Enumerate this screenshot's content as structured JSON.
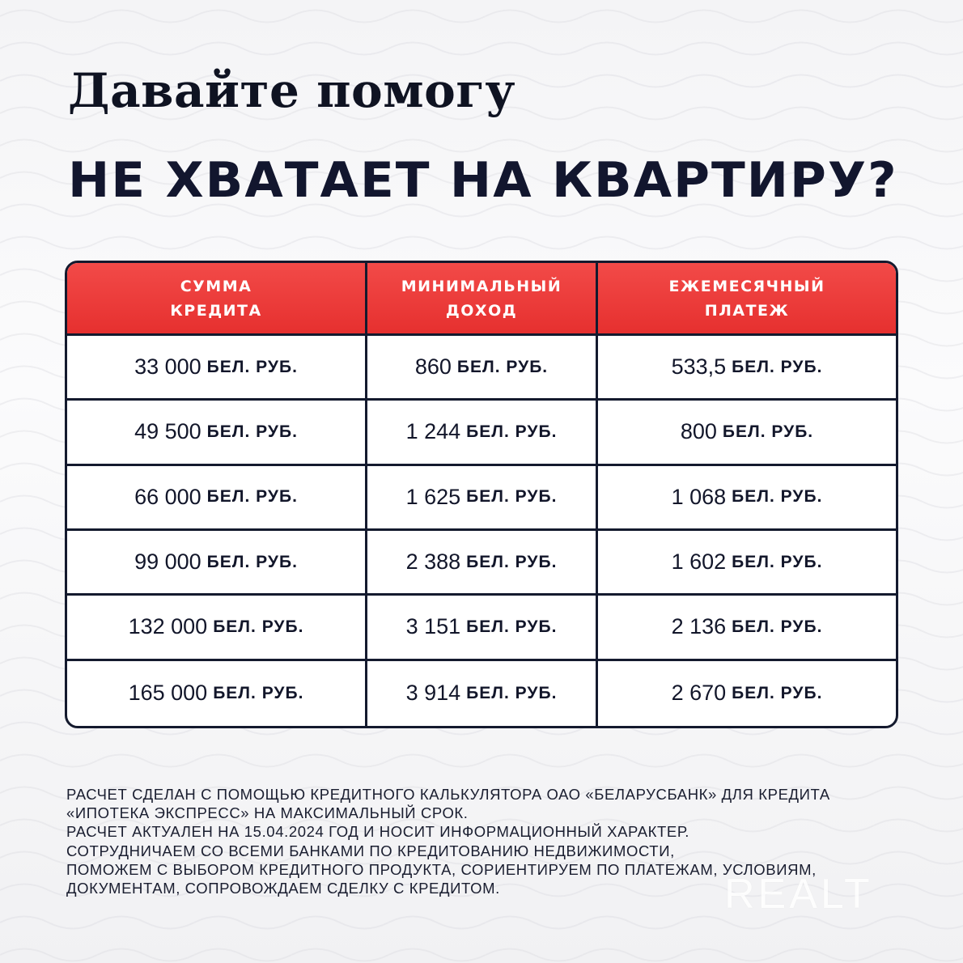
{
  "headline": "Давайте помогу",
  "subheadline": "НЕ ХВАТАЕТ НА КВАРТИРУ?",
  "table": {
    "headers": [
      "СУММА\nКРЕДИТА",
      "МИНИМАЛЬНЫЙ\nДОХОД",
      "ЕЖЕМЕСЯЧНЫЙ\nПЛАТЕЖ"
    ],
    "unit": "БЕЛ. РУБ.",
    "rows": [
      [
        "33 000",
        "860",
        "533,5"
      ],
      [
        "49 500",
        "1 244",
        "800"
      ],
      [
        "66 000",
        "1 625",
        "1 068"
      ],
      [
        "99 000",
        "2 388",
        "1 602"
      ],
      [
        "132 000",
        "3 151",
        "2 136"
      ],
      [
        "165 000",
        "3 914",
        "2 670"
      ]
    ]
  },
  "notes": [
    "РАСЧЕТ СДЕЛАН С ПОМОЩЬЮ КРЕДИТНОГО КАЛЬКУЛЯТОРА ОАО «БЕЛАРУСБАНК» ДЛЯ КРЕДИТА",
    "«ИПОТЕКА ЭКСПРЕСС» НА МАКСИМАЛЬНЫЙ СРОК.",
    "РАСЧЕТ АКТУАЛЕН НА 15.04.2024 ГОД И НОСИТ ИНФОРМАЦИОННЫЙ ХАРАКТЕР.",
    "СОТРУДНИЧАЕМ СО ВСЕМИ БАНКАМИ ПО КРЕДИТОВАНИЮ НЕДВИЖИМОСТИ,",
    "ПОМОЖЕМ С ВЫБОРОМ КРЕДИТНОГО ПРОДУКТА, СОРИЕНТИРУЕМ ПО ПЛАТЕЖАМ, УСЛОВИЯМ,",
    "ДОКУМЕНТАМ, СОПРОВОЖДАЕМ СДЕЛКУ С КРЕДИТОМ."
  ],
  "watermark": "REALT",
  "colors": {
    "header_red": "#ee3b3b",
    "border_navy": "#141a2e",
    "text": "#12162a"
  }
}
